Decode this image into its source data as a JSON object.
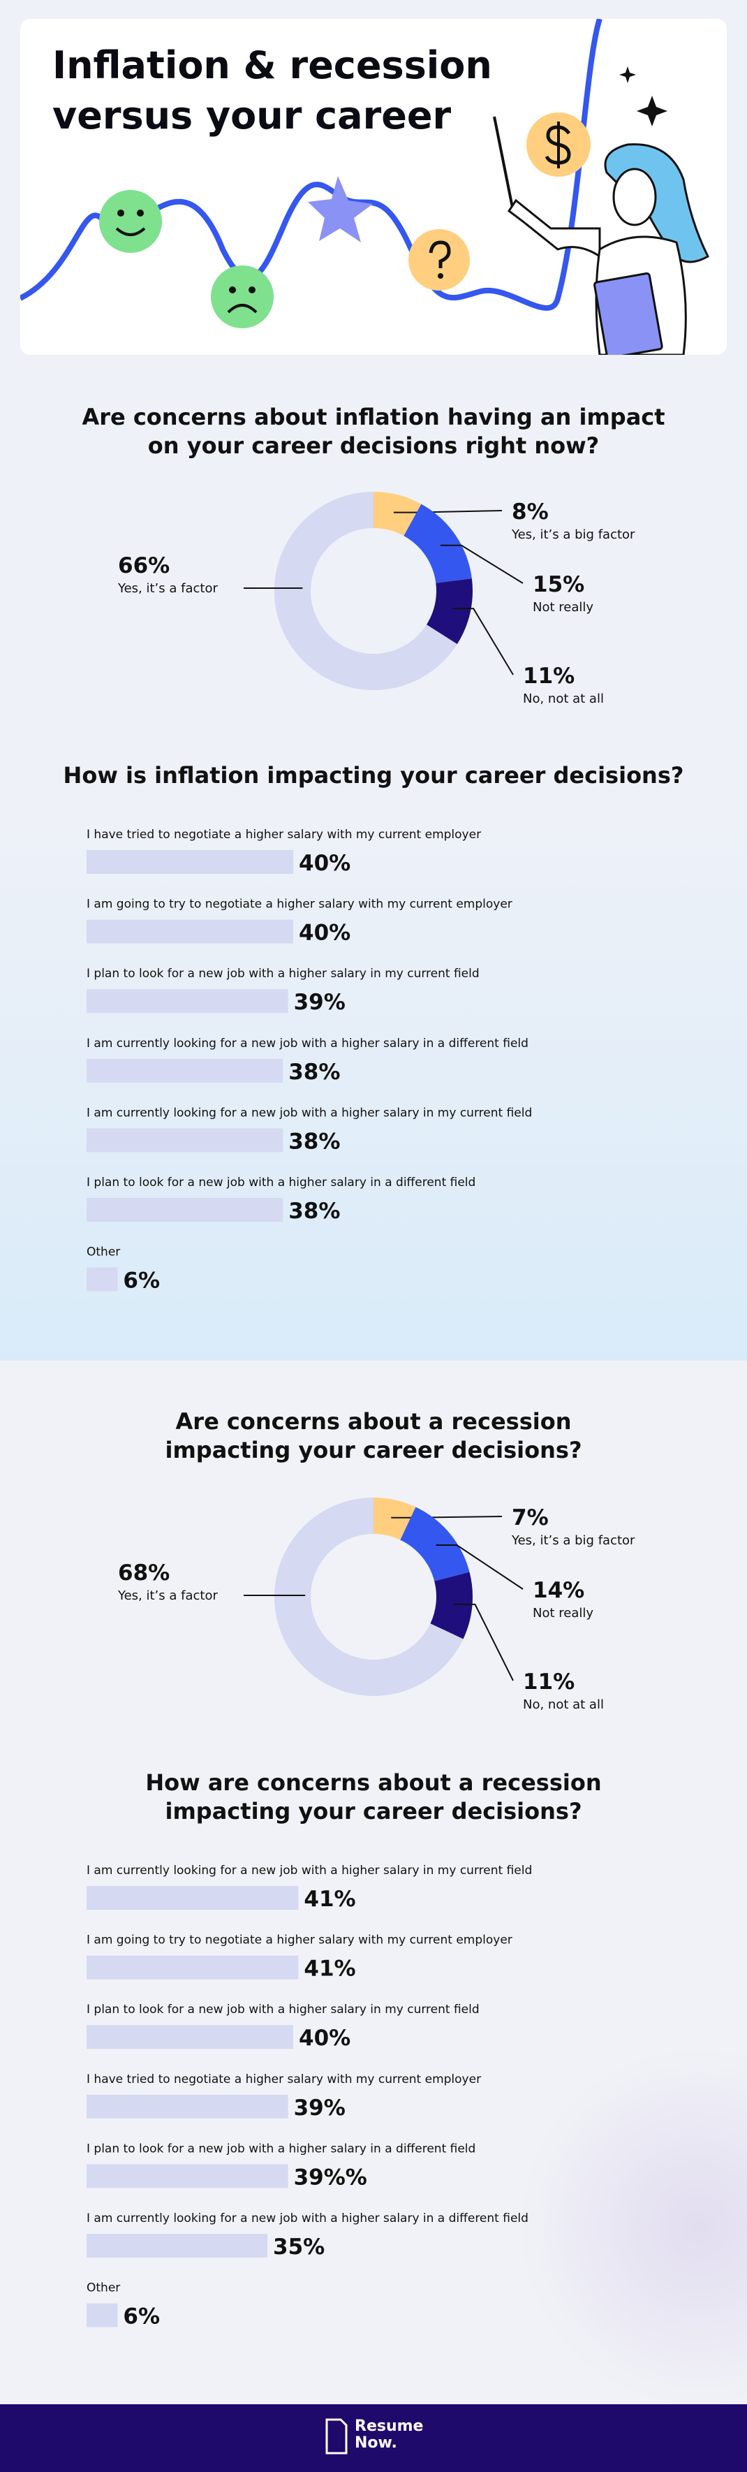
{
  "header": {
    "title": "Inflation & recession versus your career"
  },
  "chart_data": [
    {
      "type": "pie",
      "title": "Are concerns about inflation having an impact on your career decisions right now?",
      "categories": [
        "Yes, it’s a big factor",
        "Not really",
        "No, not at all",
        "Yes, it’s a factor"
      ],
      "values": [
        8,
        15,
        11,
        66
      ],
      "value_labels": [
        "8%",
        "15%",
        "11%",
        "66%"
      ],
      "colors": [
        "#ffcf7f",
        "#3457ef",
        "#1f0f7c",
        "#d5d9f1"
      ]
    },
    {
      "type": "bar",
      "title": "How is inflation impacting your career decisions?",
      "categories": [
        "I have tried to negotiate a higher salary with my current employer",
        "I am going to try to negotiate a higher salary with my current employer",
        "I plan to look for a new job with a higher salary in my current field",
        "I am currently looking for a new job with a higher salary in a different field",
        "I am currently looking for a new job with a higher salary in my current field",
        "I plan to look for a new job with a higher salary in a different field",
        "Other"
      ],
      "values": [
        40,
        40,
        39,
        38,
        38,
        38,
        6
      ],
      "value_labels": [
        "40%",
        "40%",
        "39%",
        "38%",
        "38%",
        "38%",
        "6%"
      ],
      "color": "#d5d9f1"
    },
    {
      "type": "pie",
      "title": "Are concerns about a recession impacting your career decisions?",
      "categories": [
        "Yes, it’s a big factor",
        "Not really",
        "No, not at all",
        "Yes, it’s a factor"
      ],
      "values": [
        7,
        14,
        11,
        68
      ],
      "value_labels": [
        "7%",
        "14%",
        "11%",
        "68%"
      ],
      "colors": [
        "#ffcf7f",
        "#3457ef",
        "#1f0f7c",
        "#d5d9f1"
      ]
    },
    {
      "type": "bar",
      "title": "How are concerns about a recession impacting your career decisions?",
      "categories": [
        "I am currently looking for a new job with a higher salary in my current field",
        "I am going to try to negotiate a higher salary with my current employer",
        "I plan to look for a new job with a higher salary in my current field",
        "I have tried to negotiate a higher salary with my current employer",
        "I plan to look for a new job with a higher salary in a different field",
        "I am currently looking for a new job with a higher salary in a different field",
        "Other"
      ],
      "values": [
        41,
        41,
        40,
        39,
        39,
        35,
        6
      ],
      "value_labels": [
        "41%",
        "41%",
        "40%",
        "39%",
        "39%%",
        "35%",
        "6%"
      ],
      "color": "#d5d9f1"
    }
  ],
  "footer": {
    "brand": [
      "Resume",
      "Now."
    ]
  }
}
